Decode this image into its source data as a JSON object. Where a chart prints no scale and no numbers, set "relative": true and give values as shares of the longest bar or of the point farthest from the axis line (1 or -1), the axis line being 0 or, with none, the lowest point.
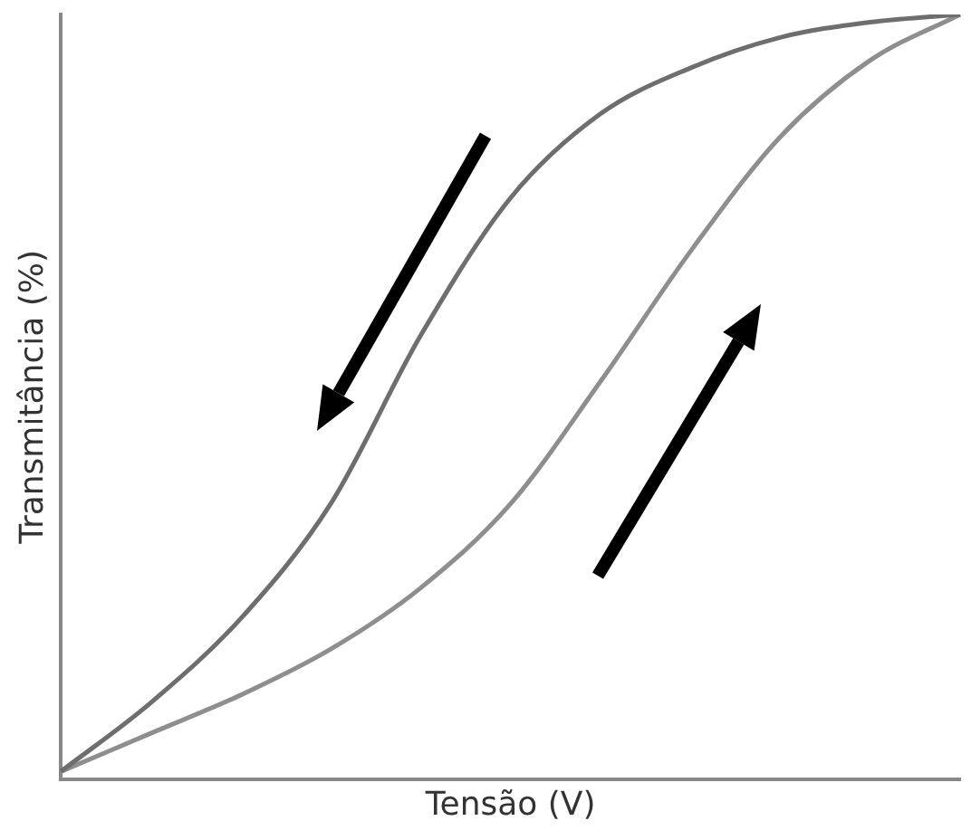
{
  "chart_data": {
    "type": "line",
    "relative": true,
    "xlabel": "Tensão (V)",
    "ylabel": "Transmitância (%)",
    "grid": false,
    "legend": false,
    "marker": "none",
    "line_style": "solid",
    "categories": [
      null,
      null,
      null,
      null,
      null,
      null,
      null,
      null,
      null,
      null,
      null
    ],
    "series": [
      {
        "color": "#6e6e6e",
        "values": [
          0.01,
          0.1,
          0.21,
          0.36,
          0.58,
          0.76,
          0.87,
          0.93,
          0.97,
          0.99,
          1
        ]
      },
      {
        "color": "#8e8e8e",
        "values": [
          0.01,
          0.06,
          0.11,
          0.17,
          0.25,
          0.36,
          0.52,
          0.69,
          0.84,
          0.94,
          1
        ]
      }
    ]
  }
}
